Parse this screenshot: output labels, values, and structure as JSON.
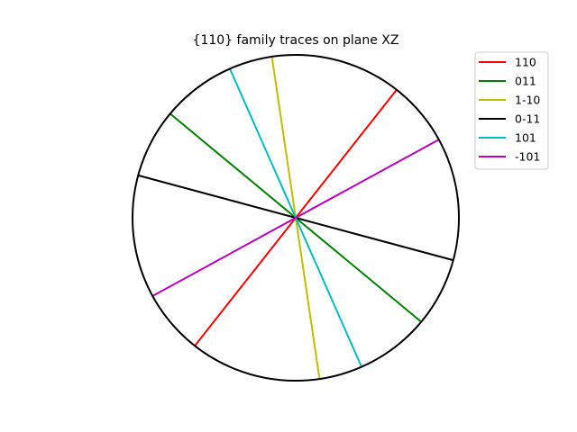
{
  "chart_data": {
    "type": "stereographic-trace-plot",
    "title": "{110} family traces on plane XZ",
    "circle_radius": 1.0,
    "grid": false,
    "legend_placement": "top-right",
    "series": [
      {
        "name": "110",
        "color": "#ff0000",
        "angle_deg": 51.8
      },
      {
        "name": "011",
        "color": "#008000",
        "angle_deg": -39.7
      },
      {
        "name": "1-10",
        "color": "#bfbf00",
        "angle_deg": -81.6
      },
      {
        "name": "0-11",
        "color": "#000000",
        "angle_deg": -15.1
      },
      {
        "name": "101",
        "color": "#00bfbf",
        "angle_deg": -66.2
      },
      {
        "name": "-101",
        "color": "#bf00bf",
        "angle_deg": 28.7
      }
    ]
  }
}
